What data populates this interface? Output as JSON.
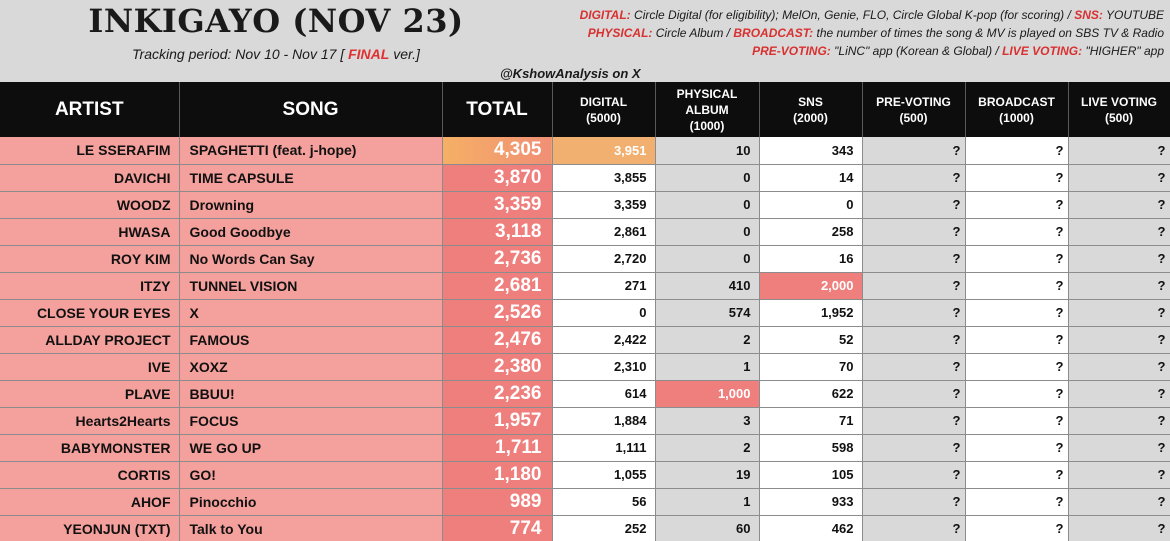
{
  "header": {
    "title": "INKIGAYO (NOV 23)",
    "period_prefix": "Tracking period: Nov 10 - Nov 17 [",
    "period_final": "FINAL",
    "period_suffix": "ver.]",
    "handle": "@KshowAnalysis on X",
    "notes": {
      "digital_key": "DIGITAL:",
      "digital_val": "Circle Digital (for eligibility); MelOn, Genie, FLO, Circle Global K-pop (for scoring) /",
      "sns_key": "SNS:",
      "sns_val": "YOUTUBE",
      "physical_key": "PHYSICAL:",
      "physical_val": "Circle Album /",
      "broadcast_key": "BROADCAST:",
      "broadcast_val": "the number of times the song & MV is played on SBS TV & Radio",
      "prevoting_key": "PRE-VOTING:",
      "prevoting_val": "\"LiNC\" app (Korean & Global) /",
      "live_key": "LIVE VOTING:",
      "live_val": "\"HIGHER\" app"
    }
  },
  "columns": {
    "artist": "ARTIST",
    "song": "SONG",
    "total": "TOTAL",
    "digital": "DIGITAL",
    "digital_max": "(5000)",
    "physical": "PHYSICAL",
    "physical2": "ALBUM",
    "physical_max": "(1000)",
    "sns": "SNS",
    "sns_max": "(2000)",
    "prevoting": "PRE-VOTING",
    "prevoting_max": "(500)",
    "broadcast": "BROADCAST",
    "broadcast_max": "(1000)",
    "live": "LIVE VOTING",
    "live_max": "(500)"
  },
  "rows": [
    {
      "artist": "LE SSERAFIM",
      "song": "SPAGHETTI (feat. j-hope)",
      "total": "4,305",
      "digital": "3,951",
      "physical": "10",
      "sns": "343",
      "prevoting": "?",
      "broadcast": "?",
      "live": "?"
    },
    {
      "artist": "DAVICHI",
      "song": "TIME CAPSULE",
      "total": "3,870",
      "digital": "3,855",
      "physical": "0",
      "sns": "14",
      "prevoting": "?",
      "broadcast": "?",
      "live": "?"
    },
    {
      "artist": "WOODZ",
      "song": "Drowning",
      "total": "3,359",
      "digital": "3,359",
      "physical": "0",
      "sns": "0",
      "prevoting": "?",
      "broadcast": "?",
      "live": "?"
    },
    {
      "artist": "HWASA",
      "song": "Good Goodbye",
      "total": "3,118",
      "digital": "2,861",
      "physical": "0",
      "sns": "258",
      "prevoting": "?",
      "broadcast": "?",
      "live": "?"
    },
    {
      "artist": "ROY KIM",
      "song": "No Words Can Say",
      "total": "2,736",
      "digital": "2,720",
      "physical": "0",
      "sns": "16",
      "prevoting": "?",
      "broadcast": "?",
      "live": "?"
    },
    {
      "artist": "ITZY",
      "song": "TUNNEL VISION",
      "total": "2,681",
      "digital": "271",
      "physical": "410",
      "sns": "2,000",
      "prevoting": "?",
      "broadcast": "?",
      "live": "?"
    },
    {
      "artist": "CLOSE YOUR EYES",
      "song": "X",
      "total": "2,526",
      "digital": "0",
      "physical": "574",
      "sns": "1,952",
      "prevoting": "?",
      "broadcast": "?",
      "live": "?"
    },
    {
      "artist": "ALLDAY PROJECT",
      "song": "FAMOUS",
      "total": "2,476",
      "digital": "2,422",
      "physical": "2",
      "sns": "52",
      "prevoting": "?",
      "broadcast": "?",
      "live": "?"
    },
    {
      "artist": "IVE",
      "song": "XOXZ",
      "total": "2,380",
      "digital": "2,310",
      "physical": "1",
      "sns": "70",
      "prevoting": "?",
      "broadcast": "?",
      "live": "?"
    },
    {
      "artist": "PLAVE",
      "song": "BBUU!",
      "total": "2,236",
      "digital": "614",
      "physical": "1,000",
      "sns": "622",
      "prevoting": "?",
      "broadcast": "?",
      "live": "?"
    },
    {
      "artist": "Hearts2Hearts",
      "song": "FOCUS",
      "total": "1,957",
      "digital": "1,884",
      "physical": "3",
      "sns": "71",
      "prevoting": "?",
      "broadcast": "?",
      "live": "?"
    },
    {
      "artist": "BABYMONSTER",
      "song": "WE GO UP",
      "total": "1,711",
      "digital": "1,111",
      "physical": "2",
      "sns": "598",
      "prevoting": "?",
      "broadcast": "?",
      "live": "?"
    },
    {
      "artist": "CORTIS",
      "song": "GO!",
      "total": "1,180",
      "digital": "1,055",
      "physical": "19",
      "sns": "105",
      "prevoting": "?",
      "broadcast": "?",
      "live": "?"
    },
    {
      "artist": "AHOF",
      "song": "Pinocchio",
      "total": "989",
      "digital": "56",
      "physical": "1",
      "sns": "933",
      "prevoting": "?",
      "broadcast": "?",
      "live": "?"
    },
    {
      "artist": "YEONJUN (TXT)",
      "song": "Talk to You",
      "total": "774",
      "digital": "252",
      "physical": "60",
      "sns": "462",
      "prevoting": "?",
      "broadcast": "?",
      "live": "?"
    }
  ],
  "colors": {
    "header_bg": "#0d0d0d",
    "artist_bg": "#f4a09c",
    "total_bg": "#ef7f7d",
    "max_cell_bg": "#ef7f7d",
    "grey_cell": "#d9d9d9",
    "highlight_orange": "#f5aa50",
    "highlight_yellow": "#f0f082",
    "accent_red": "#d93030"
  }
}
